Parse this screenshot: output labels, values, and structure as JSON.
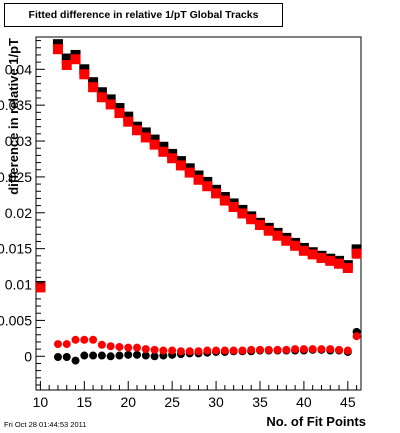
{
  "chart_data": {
    "type": "scatter",
    "title": "Fitted difference in relative 1/pT  Global Tracks",
    "xlabel": "No. of Fit Points",
    "ylabel": "difference in relative 1/pT",
    "xlim": [
      9.5,
      46.5
    ],
    "ylim": [
      -0.0047,
      0.0445
    ],
    "x_ticks": [
      10,
      15,
      20,
      25,
      30,
      35,
      40,
      45
    ],
    "x_tick_labels": [
      "10",
      "15",
      "20",
      "25",
      "30",
      "35",
      "40",
      "45"
    ],
    "y_ticks": [
      0,
      0.005,
      0.01,
      0.015,
      0.02,
      0.025,
      0.03,
      0.035,
      0.04
    ],
    "y_tick_labels": [
      "0",
      "0.005",
      "0.01",
      "0.015",
      "0.02",
      "0.025",
      "0.03",
      "0.035",
      "0.04"
    ],
    "grid": false,
    "legend": "none",
    "series": [
      {
        "marker": "square",
        "color": "#000000",
        "x": [
          10,
          12,
          13,
          14,
          15,
          16,
          17,
          18,
          19,
          20,
          21,
          22,
          23,
          24,
          25,
          26,
          27,
          28,
          29,
          30,
          31,
          32,
          33,
          34,
          35,
          36,
          37,
          38,
          39,
          40,
          41,
          42,
          43,
          44,
          45,
          46
        ],
        "values": [
          0.0098,
          0.0435,
          0.0415,
          0.042,
          0.04,
          0.0382,
          0.0368,
          0.0358,
          0.0346,
          0.0334,
          0.032,
          0.0312,
          0.0302,
          0.0292,
          0.0282,
          0.0272,
          0.0262,
          0.0252,
          0.0243,
          0.0232,
          0.0222,
          0.0213,
          0.0204,
          0.0195,
          0.0186,
          0.0179,
          0.0172,
          0.0165,
          0.0158,
          0.0151,
          0.0145,
          0.014,
          0.0136,
          0.0133,
          0.0127,
          0.0149
        ]
      },
      {
        "marker": "square",
        "color": "#ff0000",
        "x": [
          10,
          12,
          13,
          14,
          15,
          16,
          17,
          18,
          19,
          20,
          21,
          22,
          23,
          24,
          25,
          26,
          27,
          28,
          29,
          30,
          31,
          32,
          33,
          34,
          35,
          36,
          37,
          38,
          39,
          40,
          41,
          42,
          43,
          44,
          45,
          46
        ],
        "values": [
          0.0096,
          0.0428,
          0.0406,
          0.0414,
          0.0393,
          0.0375,
          0.0361,
          0.0351,
          0.0339,
          0.0327,
          0.0315,
          0.0305,
          0.0295,
          0.0285,
          0.0276,
          0.0266,
          0.0256,
          0.0246,
          0.0237,
          0.0227,
          0.0217,
          0.0208,
          0.0199,
          0.0191,
          0.0183,
          0.0175,
          0.0168,
          0.0161,
          0.0154,
          0.0147,
          0.0142,
          0.0137,
          0.0133,
          0.0129,
          0.0123,
          0.0143
        ]
      },
      {
        "marker": "circle",
        "color": "#000000",
        "x": [
          10,
          12,
          13,
          14,
          15,
          16,
          17,
          18,
          19,
          20,
          21,
          22,
          23,
          24,
          25,
          26,
          27,
          28,
          29,
          30,
          31,
          32,
          33,
          34,
          35,
          36,
          37,
          38,
          39,
          40,
          41,
          42,
          43,
          44,
          45,
          46
        ],
        "values": [
          0.0097,
          -0.0001,
          -0.0001,
          -0.0006,
          0.0001,
          0.0001,
          0.0001,
          0.0,
          0.0001,
          0.0002,
          0.0002,
          0.0001,
          0.0,
          0.0001,
          0.0002,
          0.0003,
          0.0004,
          0.0004,
          0.0005,
          0.0006,
          0.0006,
          0.0007,
          0.0007,
          0.0007,
          0.0008,
          0.0008,
          0.0008,
          0.0008,
          0.0008,
          0.0008,
          0.0009,
          0.0009,
          0.0008,
          0.0008,
          0.0006,
          0.0034
        ]
      },
      {
        "marker": "circle",
        "color": "#ff0000",
        "x": [
          10,
          12,
          13,
          14,
          15,
          16,
          17,
          18,
          19,
          20,
          21,
          22,
          23,
          24,
          25,
          26,
          27,
          28,
          29,
          30,
          31,
          32,
          33,
          34,
          35,
          36,
          37,
          38,
          39,
          40,
          41,
          42,
          43,
          44,
          45,
          46
        ],
        "values": [
          0.0096,
          0.0017,
          0.0017,
          0.0023,
          0.0023,
          0.0023,
          0.0016,
          0.0014,
          0.0013,
          0.0012,
          0.0012,
          0.001,
          0.0009,
          0.0008,
          0.0008,
          0.0007,
          0.0007,
          0.0007,
          0.0008,
          0.0008,
          0.0008,
          0.0008,
          0.0008,
          0.0009,
          0.0009,
          0.0009,
          0.0009,
          0.0009,
          0.001,
          0.001,
          0.001,
          0.001,
          0.001,
          0.0009,
          0.0008,
          0.0028
        ]
      }
    ]
  },
  "footer": {
    "timestamp": "Fri Oct 28 01:44:53 2011"
  }
}
